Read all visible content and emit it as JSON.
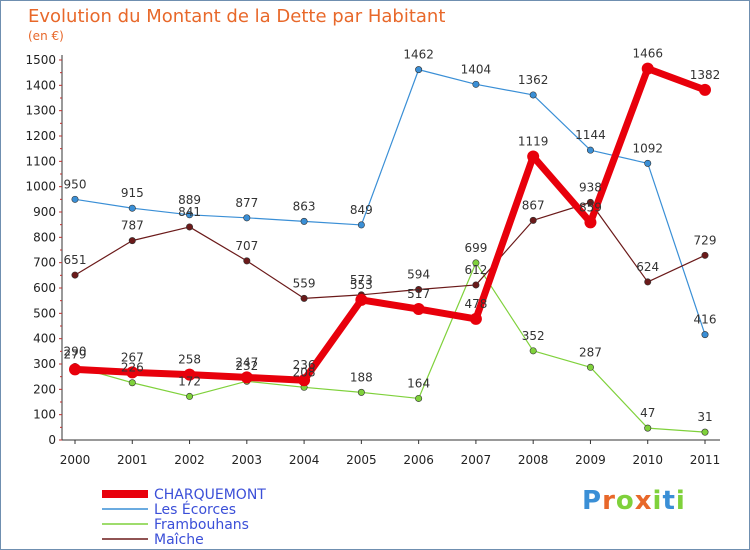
{
  "chart_data": {
    "type": "line",
    "title": "Evolution du Montant de la Dette par Habitant",
    "subtitle": "(en €)",
    "categories": [
      "2000",
      "2001",
      "2002",
      "2003",
      "2004",
      "2005",
      "2006",
      "2007",
      "2008",
      "2009",
      "2010",
      "2011"
    ],
    "ylim": [
      0,
      1500
    ],
    "yticks": [
      0,
      100,
      200,
      300,
      400,
      500,
      600,
      700,
      800,
      900,
      1000,
      1100,
      1200,
      1300,
      1400,
      1500
    ],
    "grid": false,
    "legend_position": "bottom-left",
    "series": [
      {
        "name": "CHARQUEMONT",
        "color": "#e8000b",
        "values": [
          279,
          267,
          258,
          247,
          236,
          553,
          517,
          478,
          1119,
          859,
          1466,
          1382
        ]
      },
      {
        "name": "Les Écorces",
        "color": "#3a8fd6",
        "values": [
          950,
          915,
          889,
          877,
          863,
          849,
          1462,
          1404,
          1362,
          1144,
          1092,
          416
        ]
      },
      {
        "name": "Frambouhans",
        "color": "#7fd13b",
        "values": [
          290,
          226,
          172,
          232,
          208,
          188,
          164,
          699,
          352,
          287,
          47,
          31
        ]
      },
      {
        "name": "Maîche",
        "color": "#6b1a1a",
        "values": [
          651,
          787,
          841,
          707,
          559,
          573,
          594,
          612,
          867,
          938,
          624,
          729
        ]
      }
    ]
  },
  "brand": {
    "letters": [
      "P",
      "r",
      "o",
      "x",
      "i",
      "t",
      "i"
    ],
    "colors": [
      "#3a8fd6",
      "#e8682a",
      "#7fd13b",
      "#e8682a",
      "#7fd13b",
      "#3a8fd6",
      "#7fd13b"
    ]
  }
}
